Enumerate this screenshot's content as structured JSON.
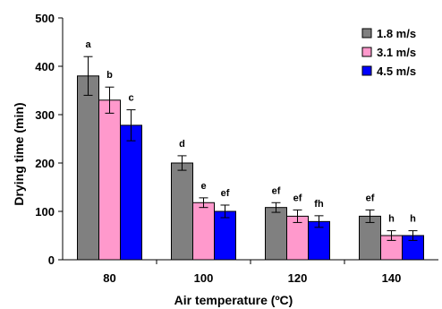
{
  "chart_data": {
    "type": "bar",
    "title": "",
    "xlabel": "Air temperature (ºC)",
    "ylabel": "Drying time (min)",
    "ylim": [
      0,
      500
    ],
    "yticks": [
      0,
      100,
      200,
      300,
      400,
      500
    ],
    "categories": [
      "80",
      "100",
      "120",
      "140"
    ],
    "grid": false,
    "legend_position": "top-right",
    "series": [
      {
        "name": "1.8 m/s",
        "color": "#808080",
        "values": [
          380,
          200,
          108,
          90
        ],
        "errors": [
          40,
          15,
          10,
          13
        ],
        "labels": [
          "a",
          "d",
          "ef",
          "ef"
        ]
      },
      {
        "name": "3.1 m/s",
        "color": "#ff99cc",
        "values": [
          330,
          118,
          90,
          50
        ],
        "errors": [
          27,
          10,
          13,
          10
        ],
        "labels": [
          "b",
          "e",
          "ef",
          "h"
        ]
      },
      {
        "name": "4.5 m/s",
        "color": "#0000ff",
        "values": [
          278,
          100,
          79,
          50
        ],
        "errors": [
          32,
          13,
          12,
          10
        ],
        "labels": [
          "c",
          "ef",
          "fh",
          "h"
        ]
      }
    ]
  }
}
